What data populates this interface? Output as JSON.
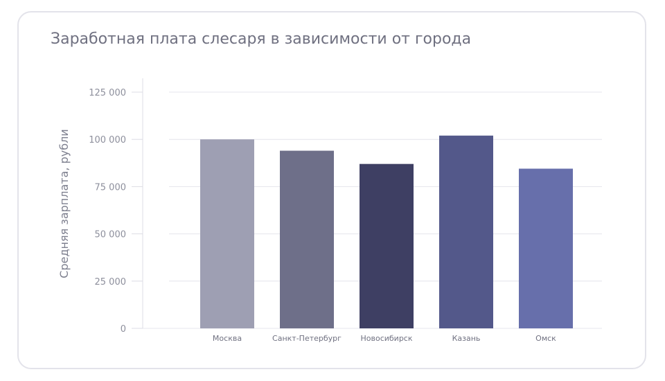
{
  "chart_data": {
    "type": "bar",
    "title": "Заработная плата слесаря в зависимости от города",
    "xlabel": "",
    "ylabel": "Средняя зарплата, рубли",
    "categories": [
      "Москва",
      "Санкт-Петербург",
      "Новосибирск",
      "Казань",
      "Омск"
    ],
    "values": [
      100000,
      94000,
      87000,
      102000,
      84500
    ],
    "ylim": [
      0,
      125000
    ],
    "yticks": [
      0,
      25000,
      50000,
      75000,
      100000,
      125000
    ],
    "ytick_labels": [
      "0",
      "25 000",
      "50 000",
      "75 000",
      "100 000",
      "125 000"
    ],
    "grid": true,
    "legend": "none",
    "colors": [
      "#9e9fb3",
      "#6e6f89",
      "#3e3f63",
      "#53588a",
      "#676fab"
    ]
  }
}
